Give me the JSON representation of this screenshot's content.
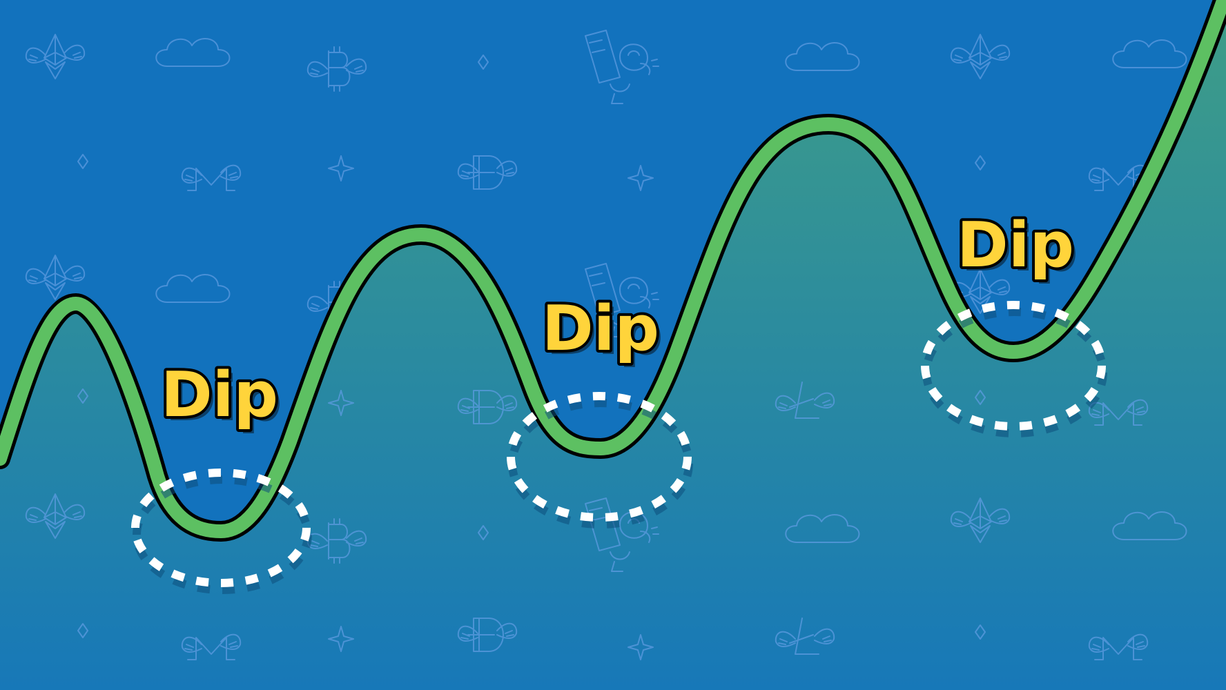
{
  "scene": {
    "sky_color": "#1272bd",
    "fill_top_color": "#3f9e86",
    "fill_bottom_color": "#1778b8",
    "line_color": "#5dc062",
    "outline_color": "#000000",
    "marker_color": "#ffffff"
  },
  "labels": [
    {
      "text": "Dip",
      "color": "#ffd43b"
    },
    {
      "text": "Dip",
      "color": "#ffd43b"
    },
    {
      "text": "Dip",
      "color": "#ffd43b"
    }
  ],
  "background_icons": [
    "ethereum-icon",
    "bitcoin-icon",
    "monero-icon",
    "dogecoin-icon",
    "litecoin-icon",
    "cloud-icon",
    "sparkle-icon",
    "diamond-icon",
    "astronaut-icon"
  ]
}
